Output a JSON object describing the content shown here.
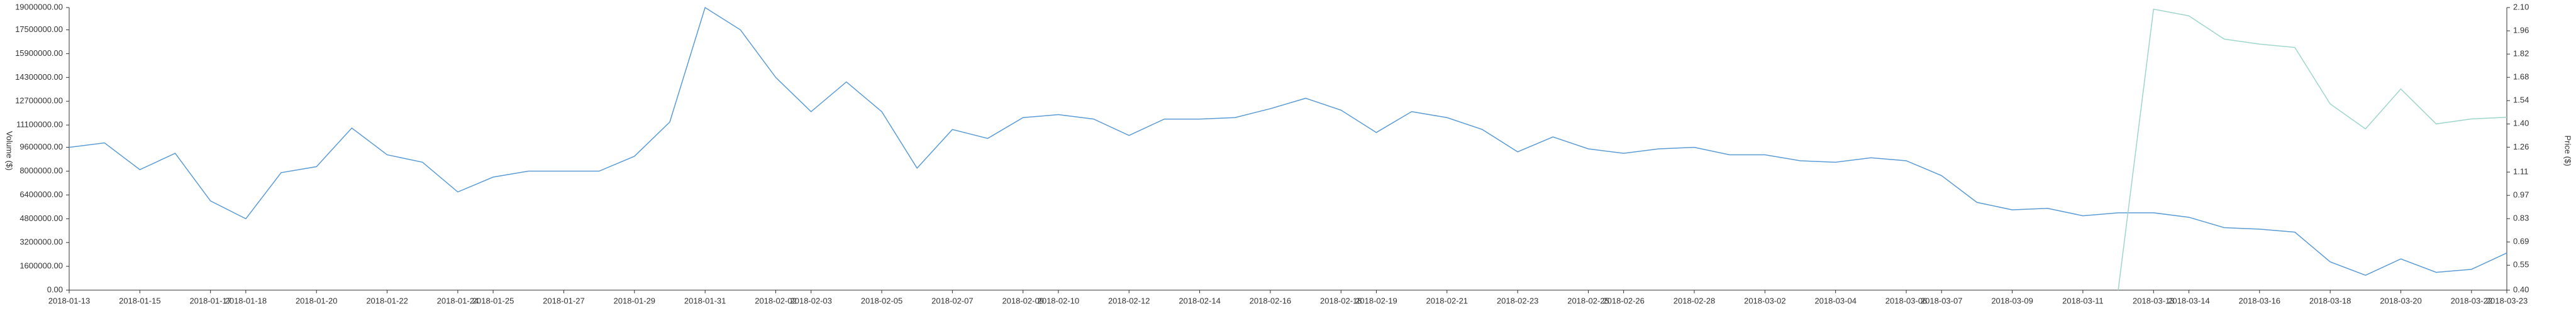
{
  "chart_data": {
    "type": "line",
    "y_label": "Volume ($)",
    "y2_label": "Price ($)",
    "categories": [
      "2018-01-13",
      null,
      "2018-01-15",
      null,
      "2018-01-17",
      "2018-01-18",
      null,
      "2018-01-20",
      null,
      "2018-01-22",
      null,
      "2018-01-24",
      "2018-01-25",
      null,
      "2018-01-27",
      null,
      "2018-01-29",
      null,
      "2018-01-31",
      null,
      "2018-02-02",
      "2018-02-03",
      null,
      "2018-02-05",
      null,
      "2018-02-07",
      null,
      "2018-02-09",
      "2018-02-10",
      null,
      "2018-02-12",
      null,
      "2018-02-14",
      null,
      "2018-02-16",
      null,
      "2018-02-18",
      "2018-02-19",
      null,
      "2018-02-21",
      null,
      "2018-02-23",
      null,
      "2018-02-25",
      "2018-02-26",
      null,
      "2018-02-28",
      null,
      "2018-03-02",
      null,
      "2018-03-04",
      null,
      "2018-03-06",
      "2018-03-07",
      null,
      "2018-03-09",
      null,
      "2018-03-11",
      null,
      "2018-03-13",
      "2018-03-14",
      null,
      "2018-03-16",
      null,
      "2018-03-18",
      null,
      "2018-03-20",
      null,
      "2018-03-22",
      "2018-03-23"
    ],
    "series": [
      {
        "name": "Volume",
        "color": "#5b9bd5",
        "axis": "y",
        "values": [
          9600000,
          9900000,
          8100000,
          9200000,
          6000000,
          4800000,
          7900000,
          8300000,
          10900000,
          9100000,
          8600000,
          6600000,
          7600000,
          8000000,
          8000000,
          8000000,
          9000000,
          11300000,
          19000000,
          17500000,
          14300000,
          12000000,
          14000000,
          12000000,
          8200000,
          10800000,
          10200000,
          11600000,
          11800000,
          11500000,
          10400000,
          11500000,
          11500000,
          11600000,
          12200000,
          12900000,
          12100000,
          10600000,
          12000000,
          11600000,
          10800000,
          9300000,
          10300000,
          9500000,
          9200000,
          9500000,
          9600000,
          9100000,
          9100000,
          8700000,
          8600000,
          8900000,
          8700000,
          7700000,
          5900000,
          5400000,
          5500000,
          5000000,
          5200000,
          5200000,
          4900000,
          4200000,
          4100000,
          3900000,
          1900000,
          1000000,
          2100000,
          1200000,
          1400000,
          2500000
        ]
      },
      {
        "name": "Price",
        "color": "#9ed6cc",
        "axis": "y2",
        "values": [
          null,
          null,
          null,
          null,
          null,
          null,
          null,
          null,
          null,
          null,
          null,
          null,
          null,
          null,
          null,
          null,
          null,
          null,
          null,
          null,
          null,
          null,
          null,
          null,
          null,
          null,
          null,
          null,
          null,
          null,
          null,
          null,
          null,
          null,
          null,
          null,
          null,
          null,
          null,
          null,
          null,
          null,
          null,
          null,
          null,
          null,
          null,
          null,
          null,
          null,
          null,
          null,
          null,
          null,
          null,
          null,
          null,
          null,
          0.4,
          2.09,
          2.05,
          1.91,
          1.88,
          1.86,
          1.52,
          1.37,
          1.61,
          1.4,
          1.43,
          1.44
        ]
      }
    ],
    "ylim": [
      0,
      19000000
    ],
    "yticks": [
      {
        "value": 0,
        "label": "0.00"
      },
      {
        "value": 1600000,
        "label": "1600000.00"
      },
      {
        "value": 3200000,
        "label": "3200000.00"
      },
      {
        "value": 4800000,
        "label": "4800000.00"
      },
      {
        "value": 6400000,
        "label": "6400000.00"
      },
      {
        "value": 8000000,
        "label": "8000000.00"
      },
      {
        "value": 9600000,
        "label": "9600000.00"
      },
      {
        "value": 11100000,
        "label": "11100000.00"
      },
      {
        "value": 12700000,
        "label": "12700000.00"
      },
      {
        "value": 14300000,
        "label": "14300000.00"
      },
      {
        "value": 15900000,
        "label": "15900000.00"
      },
      {
        "value": 17500000,
        "label": "17500000.00"
      },
      {
        "value": 19000000,
        "label": "19000000.00"
      }
    ],
    "y2lim": [
      0.4,
      2.1
    ],
    "y2ticks": [
      {
        "value": 0.4,
        "label": "0.40"
      },
      0.55,
      0.69,
      0.83,
      0.97,
      1.11,
      1.26,
      {
        "value": 1.4,
        "label": "1.40"
      },
      1.54,
      1.68,
      1.82,
      1.96,
      {
        "value": 2.1,
        "label": "2.10"
      }
    ],
    "grid": false
  }
}
